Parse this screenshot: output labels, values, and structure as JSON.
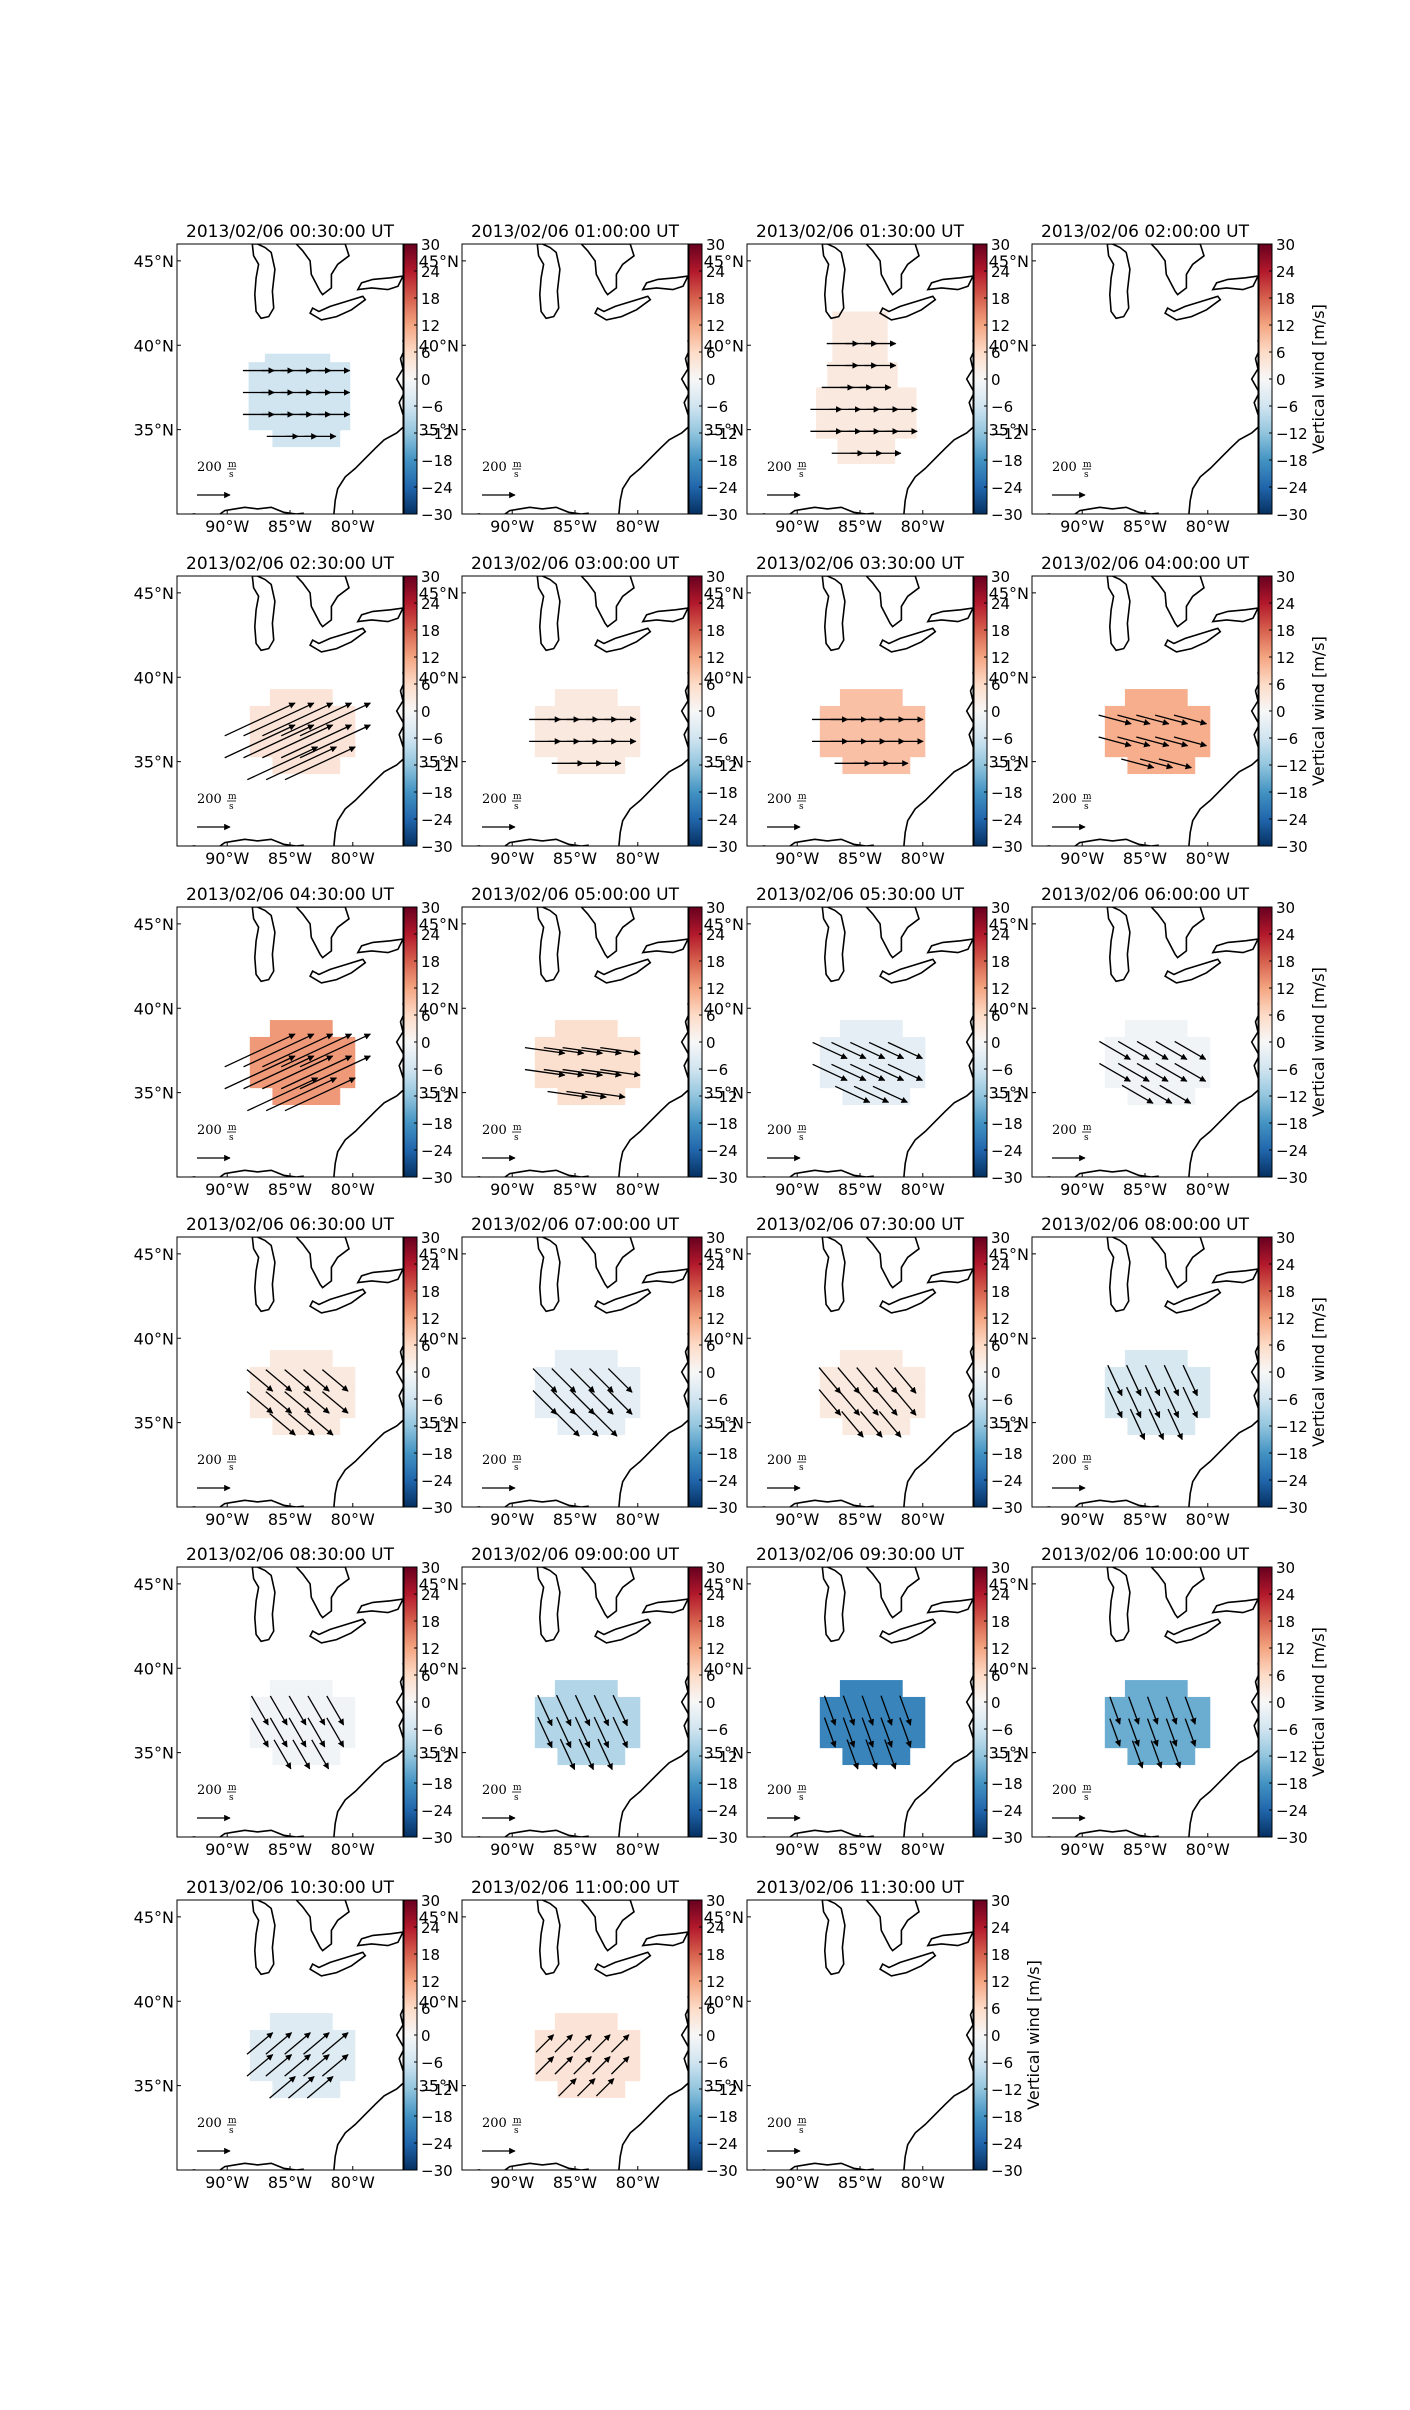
{
  "figure": {
    "title": ""
  },
  "chart_data": {
    "type": "heatmap",
    "description_type": "geographic vector/heatmap small multiples",
    "colorbar": {
      "label": "Vertical wind [m/s]",
      "range": [
        -30,
        30
      ],
      "ticks": [
        30,
        24,
        18,
        12,
        6,
        0,
        -6,
        -12,
        -18,
        -24,
        -30
      ],
      "colormap": "RdBu_r",
      "colors": [
        "#053061",
        "#2166ac",
        "#4393c3",
        "#92c5de",
        "#d1e5f0",
        "#f7f7f7",
        "#fddbc7",
        "#f4a582",
        "#d6604d",
        "#b2182b",
        "#67001f"
      ]
    },
    "x_ticks": [
      "90°W",
      "85°W",
      "80°W"
    ],
    "y_ticks": [
      "45°N",
      "40°N",
      "35°N"
    ],
    "lon_range": [
      -94,
      -76
    ],
    "lat_range": [
      30,
      46
    ],
    "reference_arrow_label": "200 m/s",
    "reference_arrow": {
      "value": "200",
      "unit_num": "m",
      "unit_den": "s"
    },
    "panels": [
      {
        "title": "2013/02/06 00:30:00 UT",
        "vertical_wind": -6,
        "arrow_scale": 0.35,
        "arrow_angle": 0,
        "shape": "blob_mid"
      },
      {
        "title": "2013/02/06 01:00:00 UT",
        "vertical_wind": null
      },
      {
        "title": "2013/02/06 01:30:00 UT",
        "vertical_wind": 3,
        "arrow_scale": 0.35,
        "arrow_angle": 0,
        "shape": "tall"
      },
      {
        "title": "2013/02/06 02:00:00 UT",
        "vertical_wind": null
      },
      {
        "title": "2013/02/06 02:30:00 UT",
        "vertical_wind": 4,
        "arrow_scale": 1.4,
        "arrow_angle": -25,
        "shape": "small"
      },
      {
        "title": "2013/02/06 03:00:00 UT",
        "vertical_wind": 3,
        "arrow_scale": 0.35,
        "arrow_angle": 0,
        "shape": "small"
      },
      {
        "title": "2013/02/06 03:30:00 UT",
        "vertical_wind": 9,
        "arrow_scale": 0.45,
        "arrow_angle": 0,
        "shape": "small"
      },
      {
        "title": "2013/02/06 04:00:00 UT",
        "vertical_wind": 11,
        "arrow_scale": 0.4,
        "arrow_angle": 15,
        "shape": "small"
      },
      {
        "title": "2013/02/06 04:30:00 UT",
        "vertical_wind": 13,
        "arrow_scale": 1.4,
        "arrow_angle": -25,
        "shape": "small"
      },
      {
        "title": "2013/02/06 05:00:00 UT",
        "vertical_wind": 5,
        "arrow_scale": 0.55,
        "arrow_angle": 8,
        "shape": "small"
      },
      {
        "title": "2013/02/06 05:30:00 UT",
        "vertical_wind": -3,
        "arrow_scale": 0.5,
        "arrow_angle": 25,
        "shape": "small"
      },
      {
        "title": "2013/02/06 06:00:00 UT",
        "vertical_wind": -1,
        "arrow_scale": 0.45,
        "arrow_angle": 30,
        "shape": "small"
      },
      {
        "title": "2013/02/06 06:30:00 UT",
        "vertical_wind": 3,
        "arrow_scale": 0.4,
        "arrow_angle": 40,
        "shape": "small"
      },
      {
        "title": "2013/02/06 07:00:00 UT",
        "vertical_wind": -3,
        "arrow_scale": 0.4,
        "arrow_angle": 45,
        "shape": "small"
      },
      {
        "title": "2013/02/06 07:30:00 UT",
        "vertical_wind": 3,
        "arrow_scale": 0.4,
        "arrow_angle": 50,
        "shape": "small"
      },
      {
        "title": "2013/02/06 08:00:00 UT",
        "vertical_wind": -5,
        "arrow_scale": 0.4,
        "arrow_angle": 65,
        "shape": "small"
      },
      {
        "title": "2013/02/06 08:30:00 UT",
        "vertical_wind": -1,
        "arrow_scale": 0.4,
        "arrow_angle": 60,
        "shape": "small"
      },
      {
        "title": "2013/02/06 09:00:00 UT",
        "vertical_wind": -9,
        "arrow_scale": 0.4,
        "arrow_angle": 65,
        "shape": "small"
      },
      {
        "title": "2013/02/06 09:30:00 UT",
        "vertical_wind": -20,
        "arrow_scale": 0.35,
        "arrow_angle": 70,
        "shape": "small"
      },
      {
        "title": "2013/02/06 10:00:00 UT",
        "vertical_wind": -15,
        "arrow_scale": 0.3,
        "arrow_angle": 70,
        "shape": "small"
      },
      {
        "title": "2013/02/06 10:30:00 UT",
        "vertical_wind": -4,
        "arrow_scale": 0.4,
        "arrow_angle": -40,
        "shape": "small"
      },
      {
        "title": "2013/02/06 11:00:00 UT",
        "vertical_wind": 4,
        "arrow_scale": 0.2,
        "arrow_angle": -45,
        "shape": "small"
      },
      {
        "title": "2013/02/06 11:30:00 UT",
        "vertical_wind": null
      }
    ]
  }
}
